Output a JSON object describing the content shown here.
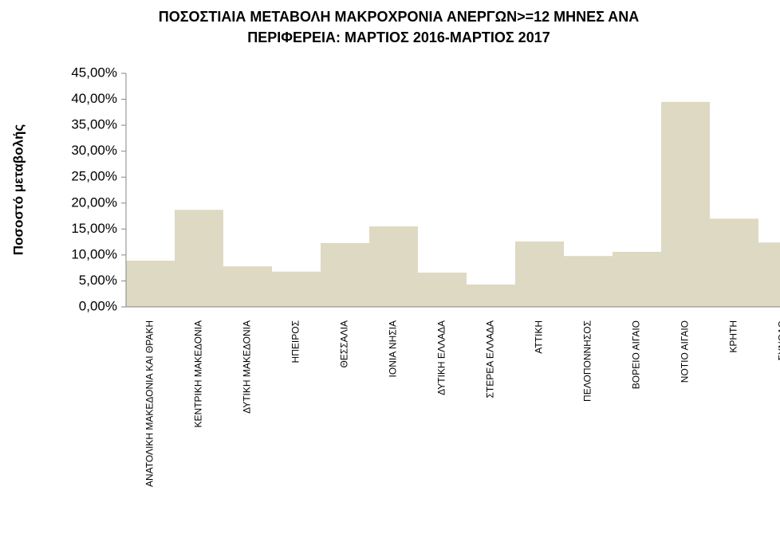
{
  "chart_data": {
    "type": "bar",
    "title": [
      "ΠΟΣΟΣΤΙΑΙΑ ΜΕΤΑΒΟΛΗ ΜΑΚΡΟΧΡΟΝΙΑ ΑΝΕΡΓΩΝ>=12 ΜΗΝΕΣ ΑΝΑ",
      "ΠΕΡΙΦΕΡΕΙΑ: ΜΑΡΤΙΟΣ 2016-ΜΑΡΤΙΟΣ 2017"
    ],
    "y_axis_label": "Ποσοστό μεταβολής",
    "categories": [
      "ΑΝΑΤΟΛΙΚΗ ΜΑΚΕΔΟΝΙΑ ΚΑΙ ΘΡΑΚΗ",
      "ΚΕΝΤΡΙΚΗ ΜΑΚΕΔΟΝΙΑ",
      "ΔΥΤΙΚΗ ΜΑΚΕΔΟΝΙΑ",
      "ΗΠΕΙΡΟΣ",
      "ΘΕΣΣΑΛΙΑ",
      "ΙΟΝΙΑ ΝΗΣΙΑ",
      "ΔΥΤΙΚΗ ΕΛΛΑΔΑ",
      "ΣΤΕΡΕΑ ΕΛΛΑΔΑ",
      "ΑΤΤΙΚΗ",
      "ΠΕΛΟΠΟΝΝΗΣΟΣ",
      "ΒΟΡΕΙΟ ΑΙΓΑΙΟ",
      "ΝΟΤΙΟ ΑΙΓΑΙΟ",
      "ΚΡΗΤΗ",
      "ΣΥΝΟΛΟ"
    ],
    "values": [
      8.9,
      18.7,
      7.8,
      6.8,
      12.3,
      15.5,
      6.6,
      4.3,
      12.6,
      9.8,
      10.6,
      39.5,
      17.0,
      12.4
    ],
    "color": "#ddd9c3",
    "ylim": [
      0,
      45
    ],
    "yticks": [
      {
        "value": 0,
        "label": "0,00%"
      },
      {
        "value": 5,
        "label": "5,00%"
      },
      {
        "value": 10,
        "label": "10,00%"
      },
      {
        "value": 15,
        "label": "15,00%"
      },
      {
        "value": 20,
        "label": "20,00%"
      },
      {
        "value": 25,
        "label": "25,00%"
      },
      {
        "value": 30,
        "label": "30,00%"
      },
      {
        "value": 35,
        "label": "35,00%"
      },
      {
        "value": 40,
        "label": "40,00%"
      },
      {
        "value": 45,
        "label": "45,00%"
      }
    ],
    "grid": false
  }
}
